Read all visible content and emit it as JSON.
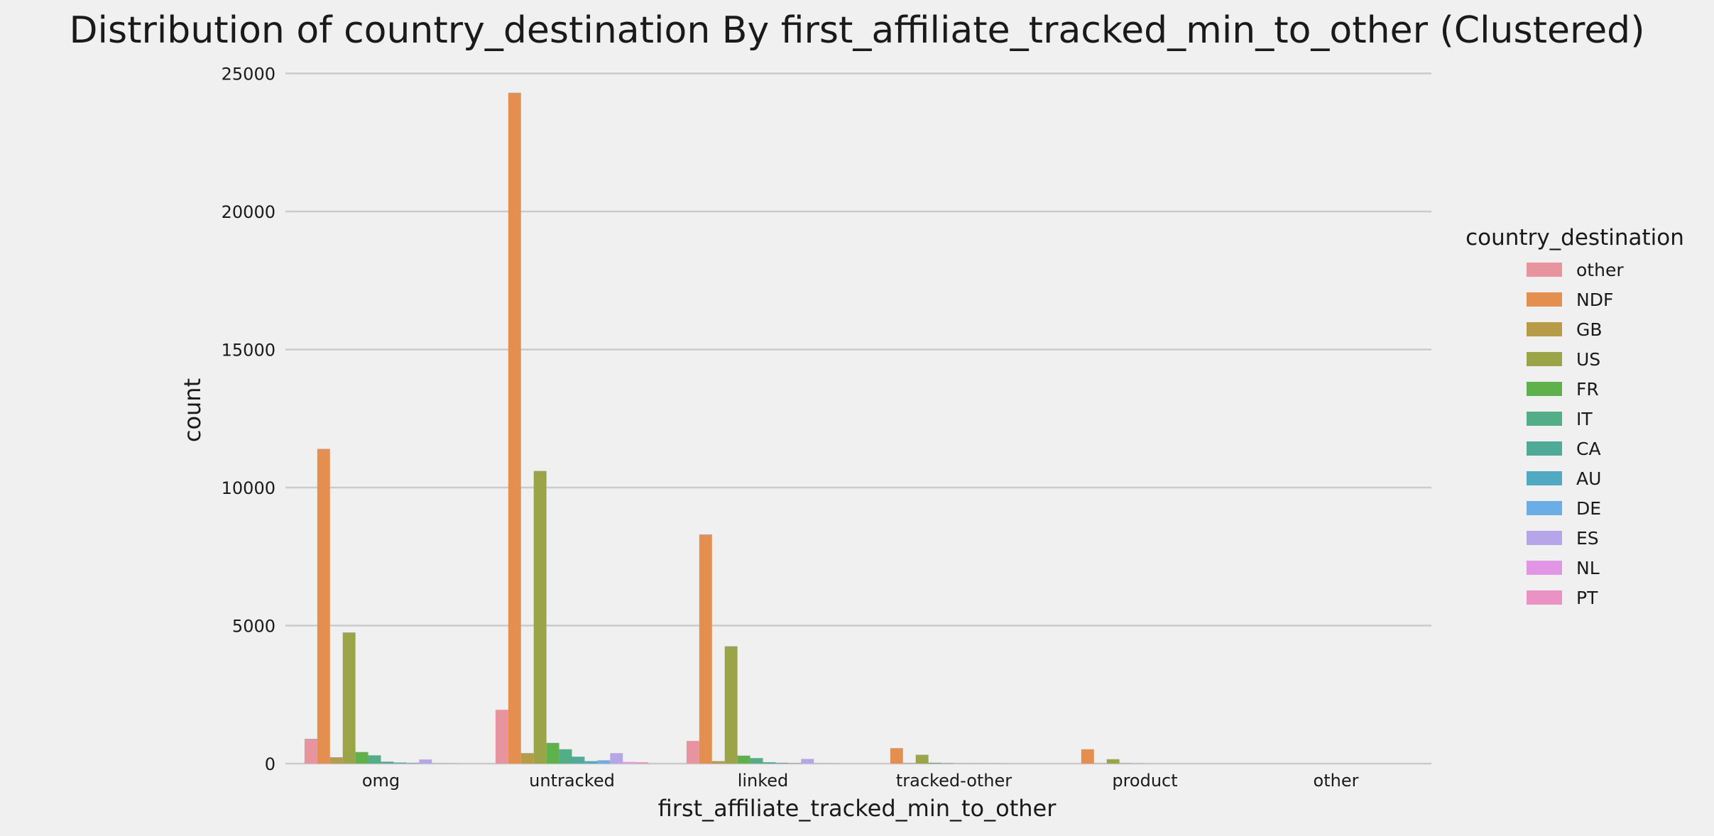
{
  "chart_data": {
    "type": "bar",
    "title": "Distribution of country_destination By first_affiliate_tracked_min_to_other (Clustered)",
    "xlabel": "first_affiliate_tracked_min_to_other",
    "ylabel": "count",
    "ylim": [
      0,
      25500
    ],
    "yticks": [
      0,
      5000,
      10000,
      15000,
      20000,
      25000
    ],
    "grid": "horizontal",
    "legend_title": "country_destination",
    "legend_position": "right",
    "categories": [
      "omg",
      "untracked",
      "linked",
      "tracked-other",
      "product",
      "other"
    ],
    "series": [
      {
        "name": "other",
        "color": "#e8949e",
        "values": [
          900,
          1950,
          820,
          0,
          0,
          0
        ]
      },
      {
        "name": "NDF",
        "color": "#e48f50",
        "values": [
          11400,
          24300,
          8300,
          560,
          520,
          0
        ]
      },
      {
        "name": "GB",
        "color": "#b89b47",
        "values": [
          230,
          380,
          90,
          20,
          10,
          0
        ]
      },
      {
        "name": "US",
        "color": "#9ba548",
        "values": [
          4750,
          10600,
          4250,
          320,
          160,
          0
        ]
      },
      {
        "name": "FR",
        "color": "#5fb14c",
        "values": [
          420,
          750,
          290,
          30,
          10,
          0
        ]
      },
      {
        "name": "IT",
        "color": "#52ae86",
        "values": [
          300,
          520,
          200,
          15,
          5,
          0
        ]
      },
      {
        "name": "CA",
        "color": "#4fab98",
        "values": [
          70,
          250,
          50,
          5,
          0,
          0
        ]
      },
      {
        "name": "AU",
        "color": "#50aac2",
        "values": [
          40,
          90,
          30,
          5,
          0,
          0
        ]
      },
      {
        "name": "DE",
        "color": "#6aaee5",
        "values": [
          30,
          120,
          20,
          5,
          0,
          0
        ]
      },
      {
        "name": "ES",
        "color": "#b7a5ea",
        "values": [
          150,
          380,
          170,
          10,
          0,
          0
        ]
      },
      {
        "name": "NL",
        "color": "#e195e4",
        "values": [
          20,
          60,
          20,
          0,
          0,
          0
        ]
      },
      {
        "name": "PT",
        "color": "#ea92c4",
        "values": [
          10,
          50,
          10,
          0,
          0,
          0
        ]
      }
    ]
  }
}
